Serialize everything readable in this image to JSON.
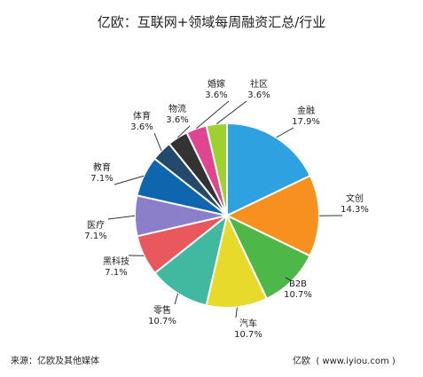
{
  "title": "亿欧：互联网+领域每周融资汇总/行业",
  "chart_data": {
    "type": "pie",
    "title": "亿欧：互联网+领域每周融资汇总/行业",
    "slices": [
      {
        "label": "金融",
        "value": 17.9,
        "display": "17.9%",
        "color": "#2ea1e0"
      },
      {
        "label": "文创",
        "value": 14.3,
        "display": "14.3%",
        "color": "#f7901e"
      },
      {
        "label": "B2B",
        "value": 10.7,
        "display": "10.7%",
        "color": "#4db848"
      },
      {
        "label": "汽车",
        "value": 10.7,
        "display": "10.7%",
        "color": "#e8da2a"
      },
      {
        "label": "零售",
        "value": 10.7,
        "display": "10.7%",
        "color": "#41b9a0"
      },
      {
        "label": "黑科技",
        "value": 7.1,
        "display": "7.1%",
        "color": "#e8585d"
      },
      {
        "label": "医疗",
        "value": 7.1,
        "display": "7.1%",
        "color": "#8b7fc9"
      },
      {
        "label": "教育",
        "value": 7.1,
        "display": "7.1%",
        "color": "#0e67ae"
      },
      {
        "label": "体育",
        "value": 3.6,
        "display": "3.6%",
        "color": "#234a6b"
      },
      {
        "label": "物流",
        "value": 3.6,
        "display": "3.6%",
        "color": "#333333"
      },
      {
        "label": "婚嫁",
        "value": 3.6,
        "display": "3.6%",
        "color": "#e0458f"
      },
      {
        "label": "社区",
        "value": 3.6,
        "display": "3.6%",
        "color": "#9fd12e"
      }
    ]
  },
  "footer": {
    "source": "来源：亿欧及其他媒体",
    "brand": "亿欧  ( www.iyiou.com )"
  }
}
